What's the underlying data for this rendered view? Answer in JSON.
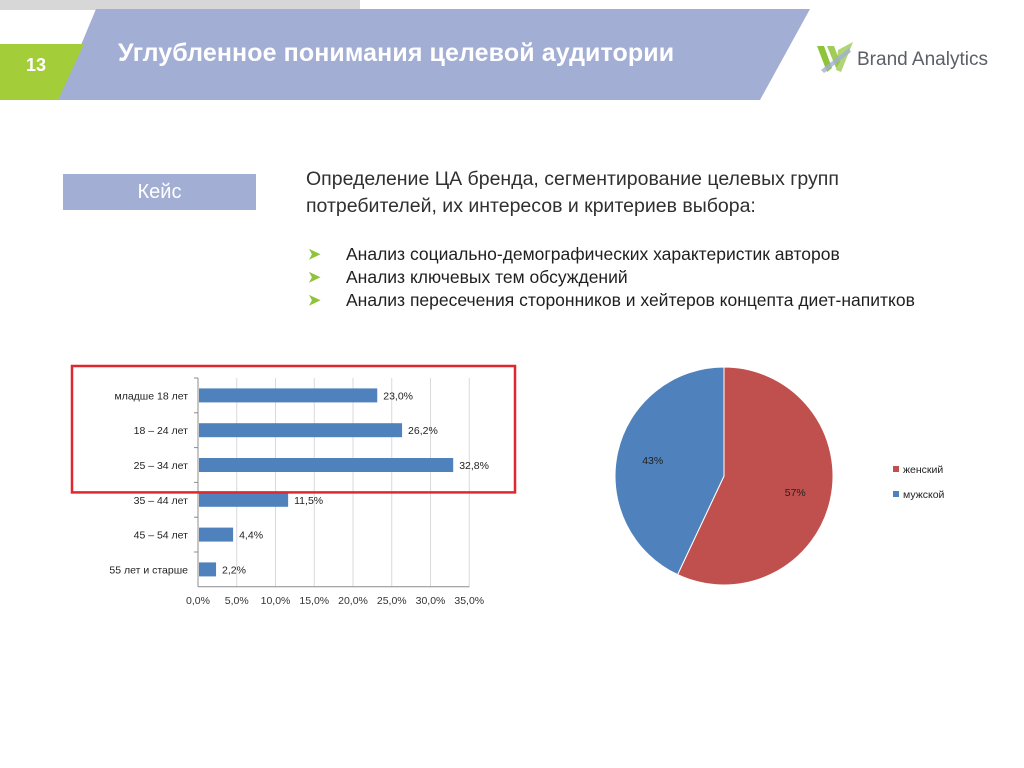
{
  "header": {
    "slide_number": "13",
    "title": "Углубленное понимания целевой аудитории",
    "logo_text": "Brand Analytics",
    "colors": {
      "band": "#a3aed4",
      "number_tab": "#a3cd39",
      "logo_mark": "#8fc33a"
    }
  },
  "case": {
    "label": "Кейс"
  },
  "intro": {
    "line1": "Определение ЦА бренда, сегментирование целевых групп",
    "line2": "потребителей, их интересов и критериев выбора:",
    "bullets": [
      "Анализ социально-демографических характеристик авторов",
      "Анализ ключевых тем обсуждений",
      "Анализ пересечения сторонников и хейтеров концепта диет-напитков"
    ]
  },
  "chart_data": [
    {
      "type": "bar",
      "orientation": "horizontal",
      "categories": [
        "младше 18 лет",
        "18 – 24 лет",
        "25 – 34 лет",
        "35 – 44 лет",
        "45 – 54 лет",
        "55 лет и старше"
      ],
      "values": [
        23.0,
        26.2,
        32.8,
        11.5,
        4.4,
        2.2
      ],
      "data_labels": [
        "23,0%",
        "26,2%",
        "32,8%",
        "11,5%",
        "4,4%",
        "2,2%"
      ],
      "xlim": [
        0,
        35
      ],
      "xticks": [
        "0,0%",
        "5,0%",
        "10,0%",
        "15,0%",
        "20,0%",
        "25,0%",
        "30,0%",
        "35,0%"
      ],
      "grid": true,
      "highlight": {
        "categories": [
          "младше 18 лет",
          "18 – 24 лет",
          "25 – 34 лет"
        ],
        "color": "#e0262f"
      },
      "bar_color": "#4f81bd"
    },
    {
      "type": "pie",
      "slices": [
        {
          "name": "женский",
          "value": 57,
          "label": "57%",
          "color": "#c0504d"
        },
        {
          "name": "мужской",
          "value": 43,
          "label": "43%",
          "color": "#4f81bd"
        }
      ],
      "legend": "right"
    }
  ]
}
